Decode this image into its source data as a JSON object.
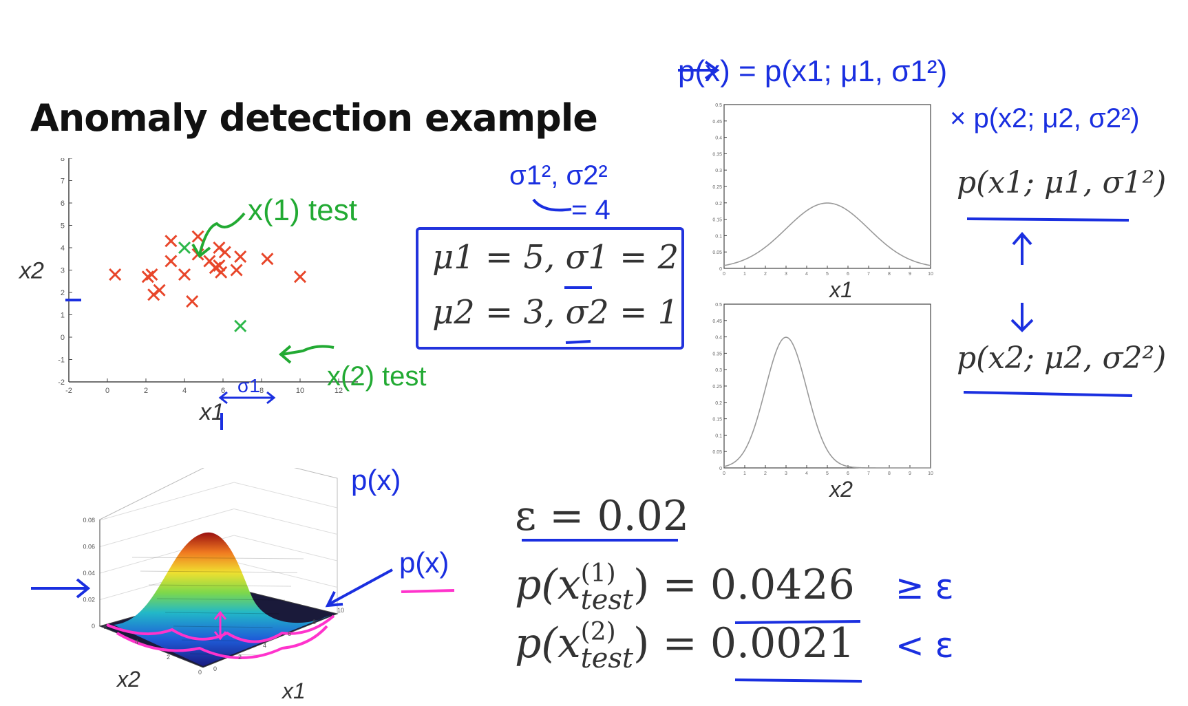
{
  "slide": {
    "title": "Anomaly detection example",
    "params": {
      "line1": "μ1 = 5, σ1 = 2",
      "line2": "μ2 = 3, σ2 = 1"
    },
    "density_labels": {
      "p_x1": "p(x1; μ1, σ1²)",
      "p_x2": "p(x2; μ2, σ2²)"
    },
    "epsilon_line": "ε = 0.02",
    "test_lines": [
      {
        "lhs": "p(x",
        "sup": "(1)",
        "sub": "test",
        "rhs": ") = 0.0426",
        "compare": "≥ ε"
      },
      {
        "lhs": "p(x",
        "sup": "(2)",
        "sub": "test",
        "rhs": ") = 0.0021",
        "compare": "< ε"
      }
    ]
  },
  "annotations": {
    "blue_formula_top": "p(x) = p(x1; μ1, σ1²)",
    "blue_formula_second": "× p(x2; μ2, σ2²)",
    "sigma_note_top": "σ1², σ2²",
    "sigma_note_bottom": "= 4",
    "px_label_top": "p(x)",
    "px_label_side": "p(x)",
    "x_test_1": "x(1) test",
    "x_test_2": "x(2) test",
    "sigma1_arrow": "σ1"
  },
  "colors": {
    "normal_point": "#e8462a",
    "test_point": "#2cb84a",
    "ink_blue": "#1a2fe0",
    "ink_green": "#22aa33",
    "ink_magenta": "#ff33cc",
    "curve": "#999999",
    "axis": "#444444"
  },
  "chart_data": [
    {
      "type": "scatter",
      "xlabel": "x1",
      "ylabel": "x2",
      "xlim": [
        -2,
        13
      ],
      "ylim": [
        -2,
        8
      ],
      "xticks": [
        "-2",
        "0",
        "2",
        "4",
        "6",
        "8",
        "10",
        "12"
      ],
      "yticks": [
        "-2",
        "-1",
        "0",
        "1",
        "2",
        "3",
        "4",
        "5",
        "6",
        "7",
        "8"
      ],
      "grid": false,
      "series": [
        {
          "points": [
            [
              0.4,
              2.8
            ],
            [
              2.1,
              2.7
            ],
            [
              2.3,
              2.8
            ],
            [
              2.4,
              1.9
            ],
            [
              2.7,
              2.1
            ],
            [
              3.3,
              4.3
            ],
            [
              3.3,
              3.4
            ],
            [
              4.0,
              2.8
            ],
            [
              4.4,
              1.6
            ],
            [
              4.7,
              4.5
            ],
            [
              4.7,
              3.7
            ],
            [
              5.3,
              3.4
            ],
            [
              5.6,
              3.1
            ],
            [
              5.8,
              4.0
            ],
            [
              5.8,
              3.2
            ],
            [
              5.9,
              2.9
            ],
            [
              6.1,
              3.8
            ],
            [
              6.7,
              3.0
            ],
            [
              6.9,
              3.6
            ],
            [
              8.3,
              3.5
            ],
            [
              10.0,
              2.7
            ]
          ]
        },
        {
          "points": [
            [
              4.0,
              4.0
            ],
            [
              6.9,
              0.5
            ]
          ]
        }
      ]
    },
    {
      "type": "line",
      "xlabel": "x1",
      "xlim": [
        0,
        10
      ],
      "ylim": [
        0,
        0.5
      ],
      "xticks": [
        "0",
        "1",
        "2",
        "3",
        "4",
        "5",
        "6",
        "7",
        "8",
        "9",
        "10"
      ],
      "yticks": [
        "0",
        "0.05",
        "0.1",
        "0.15",
        "0.2",
        "0.25",
        "0.3",
        "0.35",
        "0.4",
        "0.45",
        "0.5"
      ],
      "mean": 5,
      "sigma": 2
    },
    {
      "type": "line",
      "xlabel": "x2",
      "xlim": [
        0,
        10
      ],
      "ylim": [
        0,
        0.5
      ],
      "xticks": [
        "0",
        "1",
        "2",
        "3",
        "4",
        "5",
        "6",
        "7",
        "8",
        "9",
        "10"
      ],
      "yticks": [
        "0",
        "0.05",
        "0.1",
        "0.15",
        "0.2",
        "0.25",
        "0.3",
        "0.35",
        "0.4",
        "0.45",
        "0.5"
      ],
      "mean": 3,
      "sigma": 1
    },
    {
      "type": "area",
      "xlabel": "x1",
      "ylabel": "x2",
      "zlim": [
        0,
        0.08
      ],
      "zticks": [
        "0",
        "0.02",
        "0.04",
        "0.06",
        "0.08"
      ],
      "x1ticks": [
        "0",
        "2",
        "4",
        "6",
        "8",
        "10"
      ],
      "x2ticks": [
        "0",
        "2",
        "4",
        "6"
      ]
    }
  ]
}
